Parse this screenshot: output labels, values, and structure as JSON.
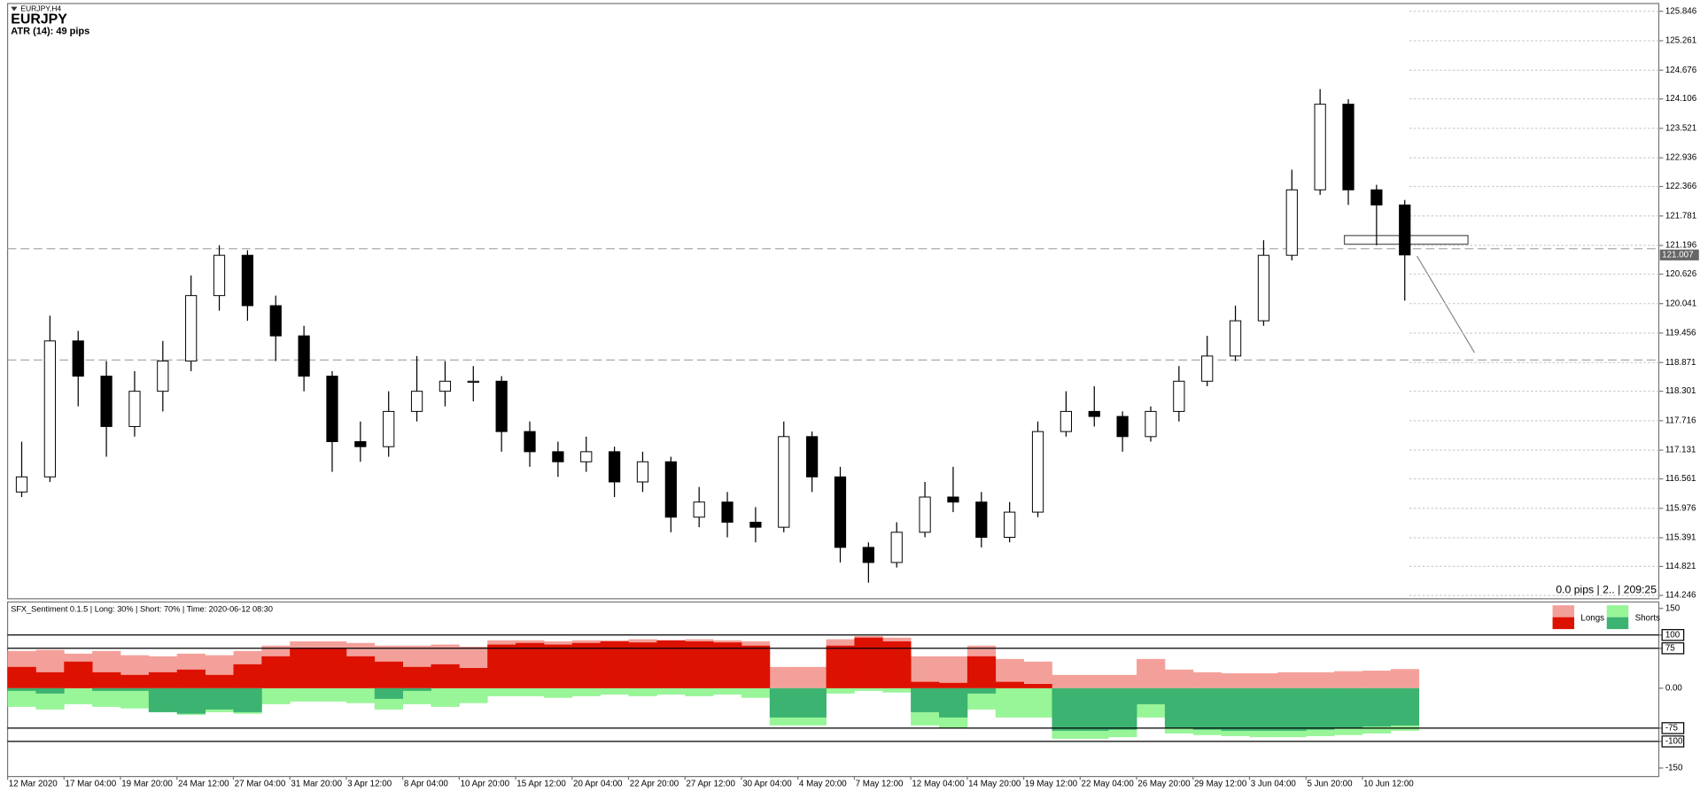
{
  "chart_data": [
    {
      "type": "candlestick",
      "symbol": "EURJPY,H4",
      "title": "EURJPY",
      "subtitle": "ATR (14): 49 pips",
      "annotation": "0.0 pips | 2.. | 209:25",
      "open": [
        116.3,
        116.6,
        119.3,
        118.6,
        117.6,
        118.3,
        118.9,
        120.2,
        121.0,
        120.0,
        119.4,
        118.6,
        117.3,
        117.2,
        117.9,
        118.3,
        118.5,
        118.5,
        117.5,
        117.1,
        116.9,
        117.1,
        116.5,
        116.9,
        115.8,
        116.1,
        115.7,
        115.6,
        117.4,
        116.6,
        115.2,
        114.9,
        115.5,
        116.2,
        116.1,
        115.4,
        115.9,
        117.5,
        117.9,
        117.8,
        117.4,
        117.9,
        118.5,
        119.0,
        119.7,
        121.0,
        122.3,
        124.0,
        122.3,
        122.0
      ],
      "high": [
        117.3,
        119.8,
        119.5,
        118.9,
        118.7,
        119.3,
        120.6,
        121.2,
        121.1,
        120.2,
        119.6,
        118.7,
        117.7,
        118.3,
        119.0,
        118.9,
        118.8,
        118.6,
        117.7,
        117.3,
        117.4,
        117.2,
        117.1,
        117.0,
        116.4,
        116.3,
        116.0,
        117.7,
        117.5,
        116.8,
        115.3,
        115.7,
        116.5,
        116.8,
        116.3,
        116.1,
        117.7,
        118.3,
        118.4,
        117.9,
        118.0,
        118.8,
        119.4,
        120.0,
        121.3,
        122.7,
        124.3,
        124.1,
        122.4,
        122.1
      ],
      "low": [
        116.2,
        116.5,
        118.0,
        117.0,
        117.4,
        117.9,
        118.7,
        119.9,
        119.7,
        118.9,
        118.3,
        116.7,
        116.9,
        117.0,
        117.7,
        118.0,
        118.1,
        117.1,
        116.8,
        116.6,
        116.7,
        116.2,
        116.3,
        115.5,
        115.6,
        115.4,
        115.3,
        115.5,
        116.3,
        114.9,
        114.5,
        114.8,
        115.4,
        115.9,
        115.2,
        115.3,
        115.8,
        117.4,
        117.6,
        117.1,
        117.3,
        117.7,
        118.4,
        118.9,
        119.6,
        120.9,
        122.2,
        122.0,
        121.2,
        120.1
      ],
      "close": [
        116.6,
        119.3,
        118.6,
        117.6,
        118.3,
        118.9,
        120.2,
        121.0,
        120.0,
        119.4,
        118.6,
        117.3,
        117.2,
        117.9,
        118.3,
        118.5,
        118.5,
        117.5,
        117.1,
        116.9,
        117.1,
        116.5,
        116.9,
        115.8,
        116.1,
        115.7,
        115.6,
        117.4,
        116.6,
        115.2,
        114.9,
        115.5,
        116.2,
        116.1,
        115.4,
        115.9,
        117.5,
        117.9,
        117.8,
        117.4,
        117.9,
        118.5,
        119.0,
        119.7,
        121.0,
        122.3,
        124.0,
        122.3,
        122.0,
        121.007
      ],
      "last_price": 121.007,
      "levels": [
        121.13,
        118.92
      ],
      "grid": "right",
      "up_color": "#ffffff",
      "down_color": "#000000",
      "xlim": [
        0,
        58.5
      ],
      "ylim": [
        114.18,
        126.0
      ],
      "xticks": [
        {
          "value": 0,
          "label": "12 Mar 2020"
        },
        {
          "value": 2,
          "label": "17 Mar 04:00"
        },
        {
          "value": 4,
          "label": "19 Mar 20:00"
        },
        {
          "value": 6,
          "label": "24 Mar 12:00"
        },
        {
          "value": 8,
          "label": "27 Mar 04:00"
        },
        {
          "value": 10,
          "label": "31 Mar 20:00"
        },
        {
          "value": 12,
          "label": "3 Apr 12:00"
        },
        {
          "value": 14,
          "label": "8 Apr 04:00"
        },
        {
          "value": 16,
          "label": "10 Apr 20:00"
        },
        {
          "value": 18,
          "label": "15 Apr 12:00"
        },
        {
          "value": 20,
          "label": "20 Apr 04:00"
        },
        {
          "value": 22,
          "label": "22 Apr 20:00"
        },
        {
          "value": 24,
          "label": "27 Apr 12:00"
        },
        {
          "value": 26,
          "label": "30 Apr 04:00"
        },
        {
          "value": 28,
          "label": "4 May 20:00"
        },
        {
          "value": 30,
          "label": "7 May 12:00"
        },
        {
          "value": 32,
          "label": "12 May 04:00"
        },
        {
          "value": 34,
          "label": "14 May 20:00"
        },
        {
          "value": 36,
          "label": "19 May 12:00"
        },
        {
          "value": 38,
          "label": "22 May 04:00"
        },
        {
          "value": 40,
          "label": "26 May 20:00"
        },
        {
          "value": 42,
          "label": "29 May 12:00"
        },
        {
          "value": 44,
          "label": "3 Jun 04:00"
        },
        {
          "value": 46,
          "label": "5 Jun 20:00"
        },
        {
          "value": 48,
          "label": "10 Jun 12:00"
        }
      ],
      "yticks": [
        125.846,
        125.261,
        124.676,
        124.106,
        123.521,
        122.936,
        122.366,
        121.781,
        121.196,
        120.626,
        120.041,
        119.456,
        118.871,
        118.301,
        117.716,
        117.131,
        116.561,
        115.976,
        115.391,
        114.821,
        114.246
      ]
    },
    {
      "type": "bar",
      "title": "SFX_Sentiment 0.1.5 | Long: 30% | Short: 70% | Time: 2020-06-12 08:30",
      "series": [
        {
          "name": "Longs",
          "color": "#f4a09a",
          "values": [
            70,
            72,
            65,
            70,
            62,
            60,
            65,
            62,
            70,
            80,
            88,
            88,
            85,
            80,
            80,
            82,
            78,
            90,
            90,
            88,
            90,
            90,
            92,
            90,
            92,
            90,
            88,
            40,
            40,
            92,
            98,
            95,
            60,
            60,
            80,
            55,
            50,
            25,
            25,
            25,
            55,
            35,
            30,
            28,
            28,
            30,
            30,
            32,
            33,
            36
          ]
        },
        {
          "name": "Shorts",
          "color": "#98f598",
          "values": [
            -35,
            -40,
            -30,
            -35,
            -38,
            -45,
            -50,
            -45,
            -48,
            -30,
            -25,
            -25,
            -28,
            -40,
            -30,
            -35,
            -28,
            -15,
            -15,
            -18,
            -15,
            -12,
            -15,
            -12,
            -15,
            -12,
            -18,
            -70,
            -70,
            -10,
            -5,
            -8,
            -70,
            -75,
            -40,
            -55,
            -55,
            -95,
            -95,
            -92,
            -55,
            -85,
            -88,
            -90,
            -92,
            -92,
            -90,
            -88,
            -85,
            -80
          ]
        }
      ],
      "inner_series": [
        {
          "color": "#dd1100",
          "values": [
            40,
            30,
            50,
            30,
            25,
            30,
            35,
            25,
            45,
            60,
            75,
            75,
            60,
            50,
            40,
            45,
            38,
            82,
            85,
            82,
            85,
            88,
            86,
            90,
            88,
            86,
            80,
            0,
            0,
            80,
            95,
            88,
            12,
            10,
            60,
            12,
            8,
            0,
            0,
            0,
            0,
            0,
            0,
            0,
            0,
            0,
            0,
            0,
            0,
            0
          ]
        },
        {
          "color": "#3cb371",
          "values": [
            -5,
            -10,
            0,
            -5,
            -5,
            -45,
            -48,
            -40,
            -45,
            0,
            0,
            0,
            0,
            -20,
            -5,
            0,
            0,
            0,
            0,
            0,
            0,
            0,
            0,
            0,
            0,
            0,
            0,
            -55,
            -55,
            0,
            0,
            0,
            -45,
            -55,
            -10,
            0,
            0,
            -80,
            -80,
            -78,
            -30,
            -75,
            -78,
            -80,
            -80,
            -80,
            -78,
            -76,
            -72,
            -70
          ]
        }
      ],
      "xlim": [
        0,
        58.5
      ],
      "ylim": [
        -166,
        162
      ],
      "yticks": [
        150,
        100,
        75,
        {
          "value": 0,
          "label": "0.00"
        },
        -75,
        -100,
        -150
      ],
      "hlines": [
        100,
        75,
        -75,
        -100
      ]
    }
  ]
}
